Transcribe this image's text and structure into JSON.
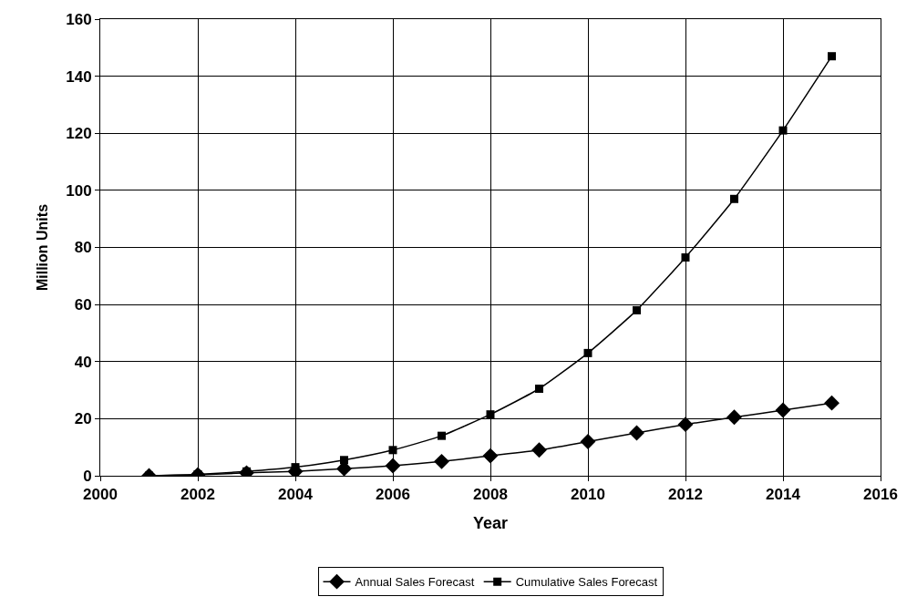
{
  "chart_data": {
    "type": "line",
    "xlabel": "Year",
    "ylabel": "Million Units",
    "x": [
      2001,
      2002,
      2003,
      2004,
      2005,
      2006,
      2007,
      2008,
      2009,
      2010,
      2011,
      2012,
      2013,
      2014,
      2015
    ],
    "series": [
      {
        "name": "Annual Sales Forecast",
        "color": "#000000",
        "marker": "diamond",
        "values": [
          0,
          0.3,
          1,
          1.5,
          2.5,
          3.5,
          5,
          7,
          9,
          12,
          15,
          18,
          20.5,
          23,
          25.5
        ]
      },
      {
        "name": "Cumulative Sales Forecast",
        "color": "#000000",
        "marker": "square",
        "values": [
          0,
          0.5,
          1.5,
          3,
          5.5,
          9,
          14,
          21.5,
          30.5,
          43,
          58,
          76.5,
          97,
          121,
          147
        ]
      }
    ],
    "xlim": [
      2000,
      2016
    ],
    "xticks": [
      2000,
      2002,
      2004,
      2006,
      2008,
      2010,
      2012,
      2014,
      2016
    ],
    "ylim": [
      0,
      160
    ],
    "yticks": [
      0,
      20,
      40,
      60,
      80,
      100,
      120,
      140,
      160
    ],
    "grid": true,
    "legend": "bottom",
    "line_style": "solid"
  }
}
